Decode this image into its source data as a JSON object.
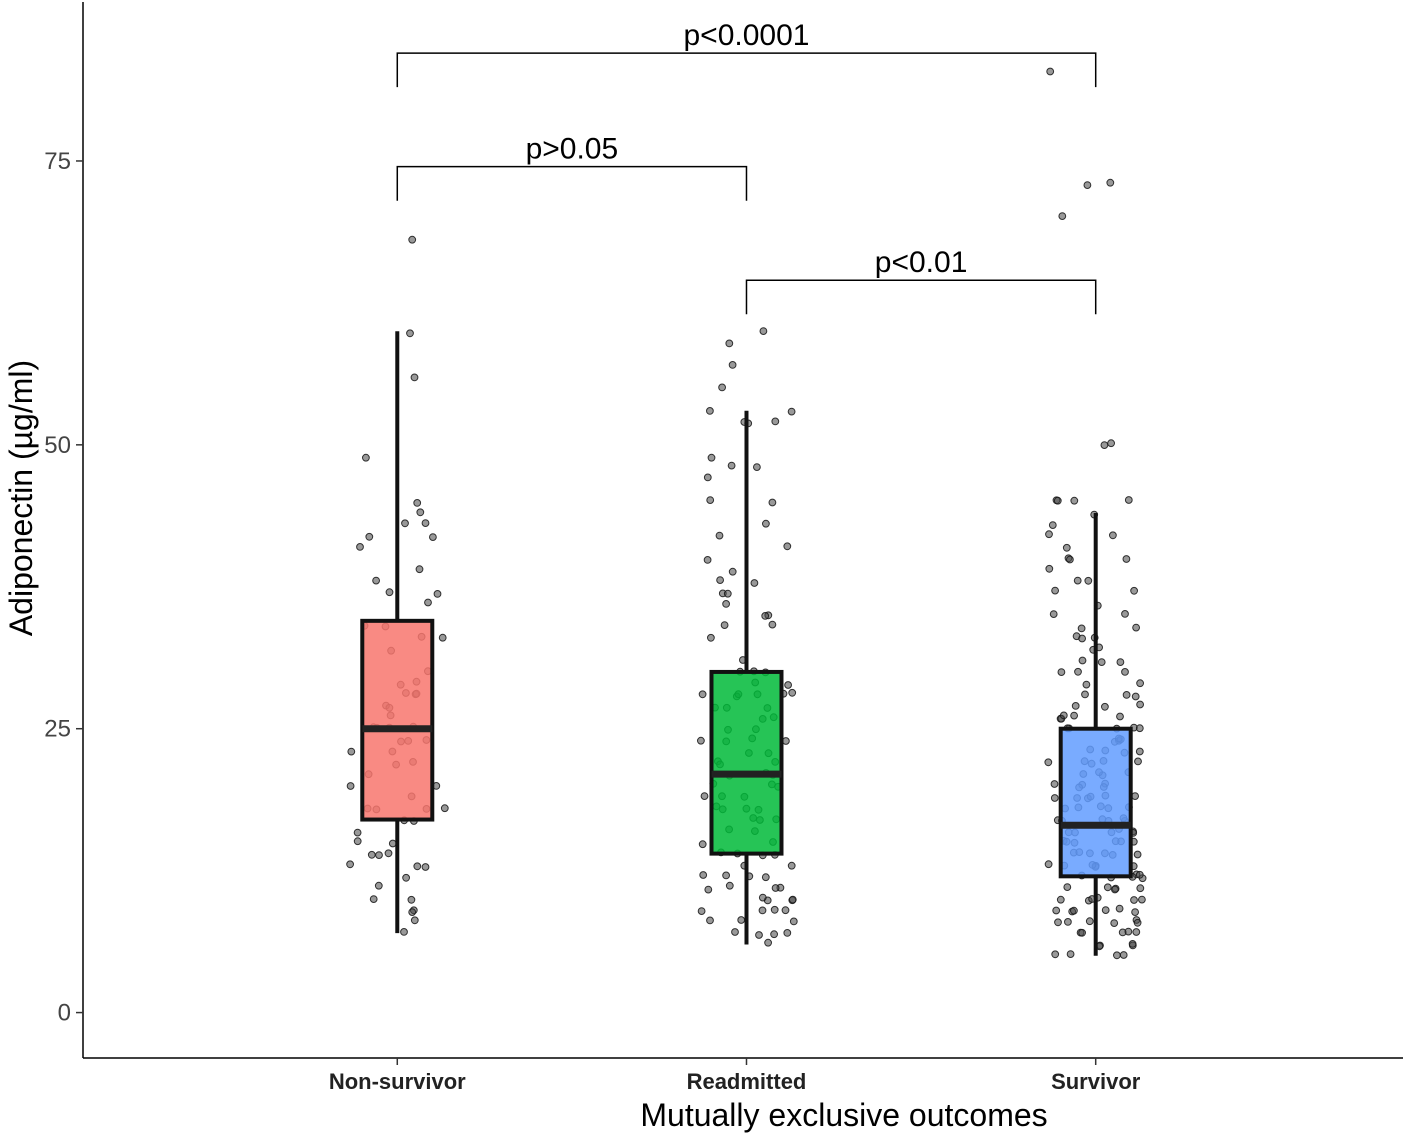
{
  "chart_data": {
    "type": "box",
    "xlabel": "Mutually exclusive outcomes",
    "ylabel": "Adiponectin (µg/ml)",
    "ylim": [
      -4,
      89
    ],
    "yticks": [
      0,
      25,
      50,
      75
    ],
    "categories": [
      "Non-survivor",
      "Readmitted",
      "Survivor"
    ],
    "grid": false,
    "legend": "none",
    "boxes": [
      {
        "category": "Non-survivor",
        "color": "#F8766D",
        "whisker_low": 7,
        "q1": 17,
        "median": 25,
        "q3": 34.5,
        "whisker_high": 60,
        "outliers": [
          68
        ]
      },
      {
        "category": "Readmitted",
        "color": "#00BA38",
        "whisker_low": 6,
        "q1": 14,
        "median": 21,
        "q3": 30,
        "whisker_high": 53,
        "outliers": [
          55,
          57,
          59,
          60
        ]
      },
      {
        "category": "Survivor",
        "color": "#619CFF",
        "whisker_low": 5,
        "q1": 12,
        "median": 16.5,
        "q3": 25,
        "whisker_high": 44,
        "outliers": [
          45,
          50,
          70,
          73,
          73,
          83
        ]
      }
    ],
    "points": [
      {
        "category": "Non-survivor",
        "values": [
          68,
          60,
          56,
          49,
          45,
          44,
          43,
          43,
          42,
          42,
          41,
          39,
          38,
          37,
          37,
          36,
          34,
          34,
          33,
          33,
          32,
          30,
          29,
          29,
          28,
          28,
          28,
          27,
          27,
          26,
          25,
          25,
          25,
          25,
          24,
          24,
          24,
          23,
          23,
          22,
          22,
          21,
          20,
          20,
          19,
          18,
          18,
          18,
          18,
          17,
          17,
          16,
          15,
          15,
          14,
          14,
          14,
          13,
          13,
          13,
          12,
          11,
          10,
          10,
          9,
          9,
          8,
          7
        ]
      },
      {
        "category": "Readmitted",
        "values": [
          60,
          59,
          57,
          55,
          53,
          53,
          52,
          52,
          52,
          49,
          48,
          48,
          47,
          45,
          45,
          43,
          42,
          41,
          40,
          39,
          38,
          38,
          37,
          37,
          36,
          35,
          35,
          34,
          34,
          33,
          31,
          30,
          30,
          30,
          29,
          29,
          28,
          28,
          28,
          28,
          28,
          28,
          27,
          27,
          27,
          26,
          26,
          25,
          25,
          24,
          24,
          24,
          24,
          23,
          23,
          22,
          22,
          22,
          21,
          21,
          21,
          20,
          20,
          20,
          19,
          19,
          19,
          18,
          18,
          18,
          18,
          17,
          17,
          17,
          16,
          16,
          15,
          15,
          14,
          14,
          14,
          14,
          13,
          13,
          12,
          12,
          12,
          12,
          11,
          11,
          11,
          11,
          10,
          10,
          10,
          10,
          9,
          9,
          9,
          9,
          8,
          8,
          8,
          7,
          7,
          7,
          7,
          6
        ]
      },
      {
        "category": "Survivor",
        "values": [
          83,
          73,
          73,
          70,
          50,
          50,
          45,
          45,
          45,
          45,
          44,
          43,
          42,
          42,
          41,
          40,
          40,
          40,
          39,
          38,
          38,
          37,
          37,
          36,
          35,
          35,
          34,
          34,
          33,
          33,
          33,
          32,
          32,
          31,
          31,
          31,
          30,
          30,
          30,
          29,
          29,
          28,
          28,
          28,
          27,
          27,
          27,
          26,
          26,
          26,
          26,
          26,
          25,
          25,
          25,
          25,
          25,
          24,
          24,
          24,
          24,
          23,
          23,
          23,
          23,
          22,
          22,
          22,
          22,
          22,
          21,
          21,
          21,
          21,
          20,
          20,
          20,
          20,
          20,
          19,
          19,
          19,
          19,
          19,
          19,
          18,
          18,
          18,
          18,
          18,
          17,
          17,
          17,
          17,
          17,
          17,
          16,
          16,
          16,
          16,
          16,
          16,
          15,
          15,
          15,
          15,
          15,
          15,
          14,
          14,
          14,
          14,
          14,
          14,
          13,
          13,
          13,
          13,
          13,
          13,
          12,
          12,
          12,
          12,
          12,
          12,
          11,
          11,
          11,
          11,
          11,
          10,
          10,
          10,
          10,
          10,
          10,
          9,
          9,
          9,
          9,
          9,
          9,
          8,
          8,
          8,
          8,
          8,
          8,
          7,
          7,
          7,
          7,
          7,
          6,
          6,
          6,
          6,
          5,
          5,
          5,
          5
        ]
      }
    ],
    "annotations": [
      {
        "text": "p<0.0001",
        "from": "Non-survivor",
        "to": "Survivor",
        "y": 84.5,
        "tip_low": 81.5
      },
      {
        "text": "p>0.05",
        "from": "Non-survivor",
        "to": "Readmitted",
        "y": 74.5,
        "tip_low": 71.5
      },
      {
        "text": "p<0.01",
        "from": "Readmitted",
        "to": "Survivor",
        "y": 64.5,
        "tip_low": 61.5
      }
    ]
  }
}
